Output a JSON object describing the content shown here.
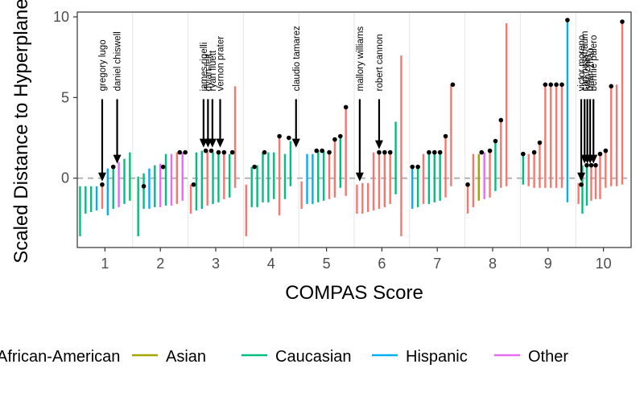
{
  "chart_data": {
    "type": "scatter",
    "xlabel": "COMPAS Score",
    "ylabel": "Scaled Distance to Hyperplane",
    "xlim": [
      0.5,
      10.5
    ],
    "ylim": [
      -4.3,
      10.3
    ],
    "x_ticks": [
      "1",
      "2",
      "3",
      "4",
      "5",
      "6",
      "7",
      "8",
      "9",
      "10"
    ],
    "y_ticks": [
      "0",
      "5",
      "10"
    ],
    "reference_line": 0,
    "grid": true,
    "legend_position": "bottom",
    "colors": {
      "African-American": "#F8766D",
      "Asian": "#A3A500",
      "Caucasian": "#00BF7D",
      "Hispanic": "#00B0F6",
      "Other": "#E76BF3"
    },
    "legend": [
      {
        "label": "African-American",
        "color": "#F8766D"
      },
      {
        "label": "Asian",
        "color": "#A3A500"
      },
      {
        "label": "Caucasian",
        "color": "#00BF7D"
      },
      {
        "label": "Hispanic",
        "color": "#00B0F6"
      },
      {
        "label": "Other",
        "color": "#E76BF3"
      }
    ],
    "segments": [
      {
        "x": 0.55,
        "lo": -3.6,
        "hi": -0.5,
        "race": "Caucasian"
      },
      {
        "x": 0.65,
        "lo": -2.2,
        "hi": -0.5,
        "race": "Caucasian"
      },
      {
        "x": 0.75,
        "lo": -2.1,
        "hi": -0.5,
        "race": "Caucasian"
      },
      {
        "x": 0.85,
        "lo": -2.0,
        "hi": -0.5,
        "race": "Hispanic"
      },
      {
        "x": 0.95,
        "lo": -1.9,
        "hi": -0.4,
        "race": "African-American"
      },
      {
        "x": 1.05,
        "lo": -2.3,
        "hi": 0.6,
        "race": "Hispanic"
      },
      {
        "x": 1.15,
        "lo": -1.9,
        "hi": 0.7,
        "race": "Caucasian"
      },
      {
        "x": 1.25,
        "lo": -1.8,
        "hi": 1.0,
        "race": "Other"
      },
      {
        "x": 1.35,
        "lo": -1.6,
        "hi": 1.2,
        "race": "Caucasian"
      },
      {
        "x": 1.45,
        "lo": -1.4,
        "hi": 1.6,
        "race": "Caucasian"
      },
      {
        "x": 1.6,
        "lo": -3.6,
        "hi": 0.1,
        "race": "Caucasian"
      },
      {
        "x": 1.7,
        "lo": -1.9,
        "hi": 0.3,
        "race": "Caucasian"
      },
      {
        "x": 1.8,
        "lo": -1.9,
        "hi": 0.6,
        "race": "Hispanic"
      },
      {
        "x": 1.9,
        "lo": -1.8,
        "hi": 0.8,
        "race": "Caucasian"
      },
      {
        "x": 2.0,
        "lo": -1.8,
        "hi": 0.9,
        "race": "Other"
      },
      {
        "x": 2.1,
        "lo": -1.7,
        "hi": 1.5,
        "race": "Caucasian"
      },
      {
        "x": 2.2,
        "lo": -1.7,
        "hi": 1.5,
        "race": "Other"
      },
      {
        "x": 2.3,
        "lo": -1.6,
        "hi": 1.6,
        "race": "African-American"
      },
      {
        "x": 2.4,
        "lo": -1.4,
        "hi": 1.6,
        "race": "Other"
      },
      {
        "x": 2.55,
        "lo": -2.2,
        "hi": -0.4,
        "race": "African-American"
      },
      {
        "x": 2.65,
        "lo": -2.0,
        "hi": 1.6,
        "race": "Caucasian"
      },
      {
        "x": 2.75,
        "lo": -1.9,
        "hi": 1.7,
        "race": "Caucasian"
      },
      {
        "x": 2.85,
        "lo": -1.7,
        "hi": 1.7,
        "race": "African-American"
      },
      {
        "x": 2.95,
        "lo": -1.6,
        "hi": 1.6,
        "race": "Caucasian"
      },
      {
        "x": 3.05,
        "lo": -1.5,
        "hi": 1.6,
        "race": "Caucasian"
      },
      {
        "x": 3.15,
        "lo": -1.3,
        "hi": 1.5,
        "race": "African-American"
      },
      {
        "x": 3.25,
        "lo": -1.2,
        "hi": 1.5,
        "race": "Caucasian"
      },
      {
        "x": 3.35,
        "lo": -0.6,
        "hi": 5.7,
        "race": "African-American"
      },
      {
        "x": 3.55,
        "lo": -3.6,
        "hi": -0.4,
        "race": "African-American"
      },
      {
        "x": 3.65,
        "lo": -1.8,
        "hi": 0.7,
        "race": "Caucasian"
      },
      {
        "x": 3.75,
        "lo": -1.8,
        "hi": 0.8,
        "race": "Caucasian"
      },
      {
        "x": 3.85,
        "lo": -1.5,
        "hi": 1.6,
        "race": "Caucasian"
      },
      {
        "x": 3.95,
        "lo": -1.5,
        "hi": 1.6,
        "race": "Caucasian"
      },
      {
        "x": 4.05,
        "lo": -1.3,
        "hi": 1.6,
        "race": "Caucasian"
      },
      {
        "x": 4.15,
        "lo": -2.3,
        "hi": 2.6,
        "race": "African-American"
      },
      {
        "x": 4.25,
        "lo": -1.3,
        "hi": 1.5,
        "race": "Caucasian"
      },
      {
        "x": 4.35,
        "lo": -0.5,
        "hi": 2.3,
        "race": "Caucasian"
      },
      {
        "x": 4.55,
        "lo": -1.9,
        "hi": -0.2,
        "race": "African-American"
      },
      {
        "x": 4.65,
        "lo": -1.6,
        "hi": 1.5,
        "race": "Hispanic"
      },
      {
        "x": 4.75,
        "lo": -1.6,
        "hi": 1.5,
        "race": "Hispanic"
      },
      {
        "x": 4.85,
        "lo": -1.5,
        "hi": 1.7,
        "race": "Caucasian"
      },
      {
        "x": 4.95,
        "lo": -1.4,
        "hi": 1.7,
        "race": "Caucasian"
      },
      {
        "x": 5.05,
        "lo": -1.3,
        "hi": 1.7,
        "race": "African-American"
      },
      {
        "x": 5.15,
        "lo": -1.2,
        "hi": 2.4,
        "race": "African-American"
      },
      {
        "x": 5.25,
        "lo": -0.6,
        "hi": 2.6,
        "race": "Caucasian"
      },
      {
        "x": 5.35,
        "lo": -1.1,
        "hi": 4.4,
        "race": "African-American"
      },
      {
        "x": 5.55,
        "lo": -2.2,
        "hi": -0.4,
        "race": "African-American"
      },
      {
        "x": 5.65,
        "lo": -2.2,
        "hi": -0.3,
        "race": "African-American"
      },
      {
        "x": 5.75,
        "lo": -2.1,
        "hi": -0.3,
        "race": "African-American"
      },
      {
        "x": 5.85,
        "lo": -2.0,
        "hi": 1.6,
        "race": "African-American"
      },
      {
        "x": 5.95,
        "lo": -1.9,
        "hi": 1.6,
        "race": "African-American"
      },
      {
        "x": 6.05,
        "lo": -1.8,
        "hi": 1.6,
        "race": "African-American"
      },
      {
        "x": 6.15,
        "lo": -1.6,
        "hi": 1.6,
        "race": "African-American"
      },
      {
        "x": 6.25,
        "lo": -1.0,
        "hi": 3.5,
        "race": "Caucasian"
      },
      {
        "x": 6.35,
        "lo": -3.6,
        "hi": 7.6,
        "race": "African-American"
      },
      {
        "x": 6.55,
        "lo": -1.9,
        "hi": 0.7,
        "race": "Hispanic"
      },
      {
        "x": 6.65,
        "lo": -1.8,
        "hi": 0.7,
        "race": "Caucasian"
      },
      {
        "x": 6.75,
        "lo": -1.6,
        "hi": 1.5,
        "race": "African-American"
      },
      {
        "x": 6.85,
        "lo": -1.6,
        "hi": 1.6,
        "race": "Caucasian"
      },
      {
        "x": 6.95,
        "lo": -1.5,
        "hi": 1.6,
        "race": "Caucasian"
      },
      {
        "x": 7.05,
        "lo": -1.4,
        "hi": 1.6,
        "race": "Caucasian"
      },
      {
        "x": 7.15,
        "lo": -1.2,
        "hi": 2.6,
        "race": "African-American"
      },
      {
        "x": 7.25,
        "lo": -0.5,
        "hi": 5.8,
        "race": "African-American"
      },
      {
        "x": 7.55,
        "lo": -2.2,
        "hi": -0.4,
        "race": "African-American"
      },
      {
        "x": 7.65,
        "lo": -1.8,
        "hi": 1.5,
        "race": "African-American"
      },
      {
        "x": 7.75,
        "lo": -1.4,
        "hi": 1.5,
        "race": "Asian"
      },
      {
        "x": 7.85,
        "lo": -1.3,
        "hi": 1.6,
        "race": "Other"
      },
      {
        "x": 7.95,
        "lo": -1.2,
        "hi": 1.6,
        "race": "African-American"
      },
      {
        "x": 8.05,
        "lo": -0.8,
        "hi": 2.3,
        "race": "Caucasian"
      },
      {
        "x": 8.15,
        "lo": -0.6,
        "hi": 3.6,
        "race": "African-American"
      },
      {
        "x": 8.25,
        "lo": -0.5,
        "hi": 9.6,
        "race": "African-American"
      },
      {
        "x": 8.55,
        "lo": -0.4,
        "hi": 1.5,
        "race": "Caucasian"
      },
      {
        "x": 8.65,
        "lo": -0.5,
        "hi": 1.5,
        "race": "African-American"
      },
      {
        "x": 8.75,
        "lo": -0.6,
        "hi": 1.6,
        "race": "African-American"
      },
      {
        "x": 8.85,
        "lo": -0.6,
        "hi": 2.2,
        "race": "African-American"
      },
      {
        "x": 8.95,
        "lo": -0.6,
        "hi": 5.8,
        "race": "African-American"
      },
      {
        "x": 9.05,
        "lo": -0.6,
        "hi": 5.8,
        "race": "African-American"
      },
      {
        "x": 9.15,
        "lo": -0.6,
        "hi": 5.8,
        "race": "African-American"
      },
      {
        "x": 9.25,
        "lo": -0.6,
        "hi": 5.8,
        "race": "African-American"
      },
      {
        "x": 9.35,
        "lo": -1.5,
        "hi": 9.8,
        "race": "Hispanic"
      },
      {
        "x": 9.55,
        "lo": -1.6,
        "hi": -0.3,
        "race": "African-American"
      },
      {
        "x": 9.62,
        "lo": -2.2,
        "hi": 0.8,
        "race": "Caucasian"
      },
      {
        "x": 9.7,
        "lo": -1.7,
        "hi": 0.9,
        "race": "Caucasian"
      },
      {
        "x": 9.78,
        "lo": -1.4,
        "hi": 0.8,
        "race": "African-American"
      },
      {
        "x": 9.86,
        "lo": -1.3,
        "hi": 0.8,
        "race": "African-American"
      },
      {
        "x": 9.94,
        "lo": -1.3,
        "hi": 1.6,
        "race": "African-American"
      },
      {
        "x": 10.04,
        "lo": -0.6,
        "hi": 1.7,
        "race": "African-American"
      },
      {
        "x": 10.14,
        "lo": -0.5,
        "hi": 5.7,
        "race": "African-American"
      },
      {
        "x": 10.24,
        "lo": -0.5,
        "hi": 5.8,
        "race": "African-American"
      },
      {
        "x": 10.34,
        "lo": -0.4,
        "hi": 9.7,
        "race": "African-American"
      }
    ],
    "points": [
      {
        "x": 0.95,
        "y": -0.4
      },
      {
        "x": 1.15,
        "y": 0.7
      },
      {
        "x": 1.7,
        "y": -0.5
      },
      {
        "x": 2.05,
        "y": 0.7
      },
      {
        "x": 2.35,
        "y": 1.6
      },
      {
        "x": 2.45,
        "y": 1.6
      },
      {
        "x": 2.6,
        "y": -0.4
      },
      {
        "x": 2.82,
        "y": 1.7
      },
      {
        "x": 2.92,
        "y": 1.7
      },
      {
        "x": 3.05,
        "y": 1.6
      },
      {
        "x": 3.15,
        "y": 1.6
      },
      {
        "x": 3.3,
        "y": 1.6
      },
      {
        "x": 3.7,
        "y": 0.7
      },
      {
        "x": 3.88,
        "y": 1.6
      },
      {
        "x": 4.15,
        "y": 2.6
      },
      {
        "x": 4.32,
        "y": 2.5
      },
      {
        "x": 4.82,
        "y": 1.7
      },
      {
        "x": 4.92,
        "y": 1.7
      },
      {
        "x": 5.05,
        "y": 1.6
      },
      {
        "x": 5.15,
        "y": 2.4
      },
      {
        "x": 5.25,
        "y": 2.6
      },
      {
        "x": 5.35,
        "y": 4.4
      },
      {
        "x": 5.95,
        "y": 1.6
      },
      {
        "x": 6.05,
        "y": 1.6
      },
      {
        "x": 6.15,
        "y": 1.6
      },
      {
        "x": 6.55,
        "y": 0.7
      },
      {
        "x": 6.65,
        "y": 0.7
      },
      {
        "x": 6.85,
        "y": 1.6
      },
      {
        "x": 6.95,
        "y": 1.6
      },
      {
        "x": 7.05,
        "y": 1.6
      },
      {
        "x": 7.15,
        "y": 2.6
      },
      {
        "x": 7.28,
        "y": 5.8
      },
      {
        "x": 7.55,
        "y": -0.4
      },
      {
        "x": 7.8,
        "y": 1.6
      },
      {
        "x": 7.95,
        "y": 1.7
      },
      {
        "x": 8.05,
        "y": 2.3
      },
      {
        "x": 8.15,
        "y": 3.6
      },
      {
        "x": 8.55,
        "y": 1.5
      },
      {
        "x": 8.75,
        "y": 1.6
      },
      {
        "x": 8.85,
        "y": 2.2
      },
      {
        "x": 8.95,
        "y": 5.8
      },
      {
        "x": 9.05,
        "y": 5.8
      },
      {
        "x": 9.15,
        "y": 5.8
      },
      {
        "x": 9.25,
        "y": 5.8
      },
      {
        "x": 9.35,
        "y": 9.8
      },
      {
        "x": 9.6,
        "y": -0.4
      },
      {
        "x": 9.7,
        "y": 0.8
      },
      {
        "x": 9.78,
        "y": 0.8
      },
      {
        "x": 9.86,
        "y": 0.8
      },
      {
        "x": 9.94,
        "y": 1.5
      },
      {
        "x": 10.04,
        "y": 1.7
      },
      {
        "x": 10.14,
        "y": 5.7
      },
      {
        "x": 10.34,
        "y": 9.7
      }
    ],
    "annotations": [
      {
        "text": "gregory lugo",
        "x": 0.95,
        "y": -0.2
      },
      {
        "text": "daniel chiswell",
        "x": 1.22,
        "y": 0.9
      },
      {
        "text": "james rigelli",
        "x": 2.78,
        "y": 1.9
      },
      {
        "text": "dylan felt",
        "x": 2.86,
        "y": 1.9
      },
      {
        "text": "ryan fluett",
        "x": 2.94,
        "y": 1.9
      },
      {
        "text": "vernon prater",
        "x": 3.08,
        "y": 1.9
      },
      {
        "text": "claudio tamarez",
        "x": 4.45,
        "y": 1.9
      },
      {
        "text": "mallory williams",
        "x": 5.6,
        "y": -0.2
      },
      {
        "text": "robert cannon",
        "x": 5.95,
        "y": 1.8
      },
      {
        "text": "victor moreno",
        "x": 9.6,
        "y": -0.2
      },
      {
        "text": "carl nussbaum",
        "x": 9.66,
        "y": 0.9
      },
      {
        "text": "ivan chin",
        "x": 9.71,
        "y": 0.9
      },
      {
        "text": "brian zhao",
        "x": 9.76,
        "y": 0.9
      },
      {
        "text": "bennie palero",
        "x": 9.82,
        "y": 0.9
      }
    ]
  }
}
